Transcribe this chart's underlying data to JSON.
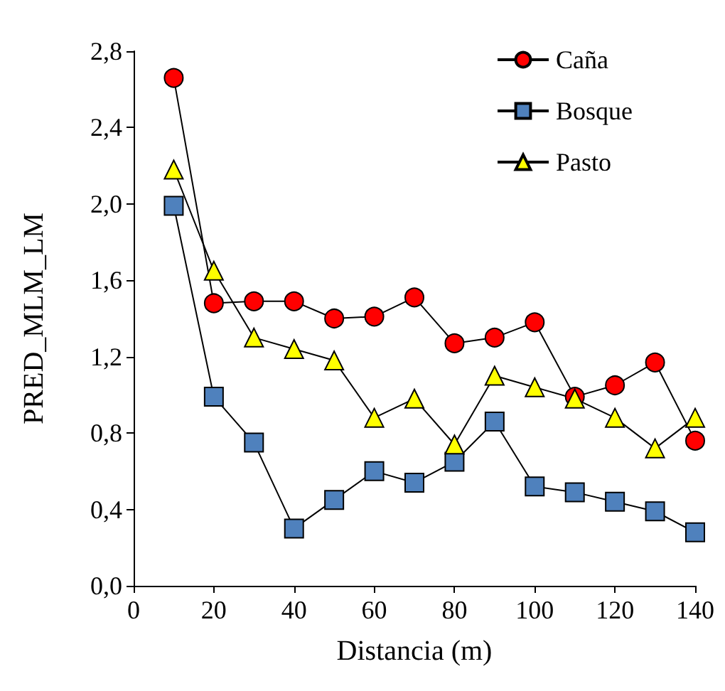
{
  "chart_data": {
    "type": "line",
    "xlabel": "Distancia (m)",
    "ylabel": "PRED_MLM_LM",
    "x": [
      10,
      20,
      30,
      40,
      50,
      60,
      70,
      80,
      90,
      100,
      110,
      120,
      130,
      140
    ],
    "series": [
      {
        "name": "Caña",
        "color": "#ff0000",
        "marker": "circle",
        "values": [
          2.66,
          1.48,
          1.49,
          1.49,
          1.4,
          1.41,
          1.51,
          1.27,
          1.3,
          1.38,
          0.99,
          1.05,
          1.17,
          0.76
        ]
      },
      {
        "name": "Bosque",
        "color": "#4f81bd",
        "marker": "square",
        "values": [
          1.99,
          0.99,
          0.75,
          0.3,
          0.45,
          0.6,
          0.54,
          0.65,
          0.86,
          0.52,
          0.49,
          0.44,
          0.39,
          0.28
        ]
      },
      {
        "name": "Pasto",
        "color": "#ffff00",
        "marker": "triangle",
        "values": [
          2.18,
          1.65,
          1.3,
          1.24,
          1.18,
          0.88,
          0.98,
          0.74,
          1.1,
          1.04,
          0.98,
          0.88,
          0.72,
          0.88
        ]
      }
    ],
    "xlim": [
      0,
      140
    ],
    "xticks": [
      0,
      20,
      40,
      60,
      80,
      100,
      120,
      140
    ],
    "ylim": [
      0,
      2.8
    ],
    "yticks": [
      {
        "value": 0,
        "label": "0,0"
      },
      {
        "value": 0.4,
        "label": "0,4"
      },
      {
        "value": 0.8,
        "label": "0,8"
      },
      {
        "value": 1.2,
        "label": "1,2"
      },
      {
        "value": 1.6,
        "label": "1,6"
      },
      {
        "value": 2,
        "label": "2,0"
      },
      {
        "value": 2.4,
        "label": "2,4"
      },
      {
        "value": 2.8,
        "label": "2,8"
      }
    ],
    "grid": false,
    "legend": "top right",
    "line_style": "solid"
  }
}
